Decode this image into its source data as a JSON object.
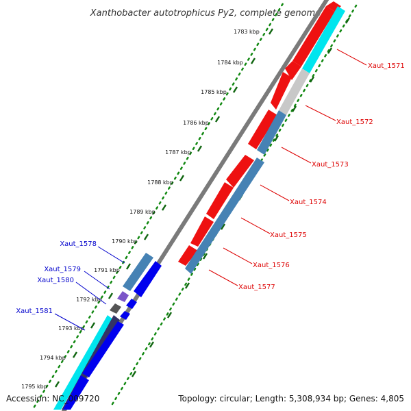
{
  "title": "Xanthobacter autotrophicus Py2, complete genome",
  "footer": {
    "accession": "Accession: NC_009720",
    "summary": "Topology: circular; Length: 5,308,934 bp; Genes: 4,805"
  },
  "colors": {
    "backbone": "#7a7a7a",
    "tick_dots": "#118811",
    "forward_label": "#dd0000",
    "reverse_label": "#0000cc",
    "forward_cds": "#ee1111",
    "steel_blue": "#4682b4",
    "cyan": "#00e5ee",
    "grey": "#c8c8c8",
    "blue_cds": "#0000ee",
    "purple": "#7b55c8",
    "dark_grey": "#555555",
    "navy": "#333366"
  },
  "kbp_ticks": [
    {
      "label": "1783 kbp"
    },
    {
      "label": "1784 kbp"
    },
    {
      "label": "1785 kbp"
    },
    {
      "label": "1786 kbp"
    },
    {
      "label": "1787 kbp"
    },
    {
      "label": "1788 kbp"
    },
    {
      "label": "1789 kbp"
    },
    {
      "label": "1790 kbp"
    },
    {
      "label": "1791 kbp"
    },
    {
      "label": "1792 kbp"
    },
    {
      "label": "1793 kbp"
    },
    {
      "label": "1794 kbp"
    },
    {
      "label": "1795 kbp"
    }
  ],
  "forward_labels": [
    "Xaut_1571",
    "Xaut_1572",
    "Xaut_1573",
    "Xaut_1574",
    "Xaut_1575",
    "Xaut_1576",
    "Xaut_1577"
  ],
  "reverse_labels": [
    "Xaut_1578",
    "Xaut_1579",
    "Xaut_1580",
    "Xaut_1581"
  ]
}
